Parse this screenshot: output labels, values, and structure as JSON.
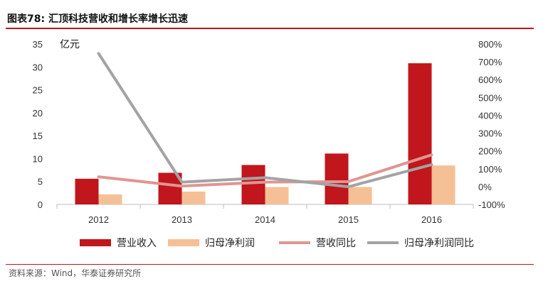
{
  "header": {
    "figure_no": "图表78:",
    "title": "汇顶科技营收和增长率增长迅速"
  },
  "unit_label": "亿元",
  "source_note": "资料来源：Wind，华泰证券研究所",
  "colors": {
    "revenue": "#c0161c",
    "net_profit": "#f5c096",
    "revenue_yoy": "#e09592",
    "net_profit_yoy": "#a3a3a3",
    "accent_rule": "#c0161c"
  },
  "chart_data": {
    "type": "bar",
    "categories": [
      "2012",
      "2013",
      "2014",
      "2015",
      "2016"
    ],
    "series": [
      {
        "name": "营业收入",
        "type": "bar",
        "axis": "left",
        "values": [
          5.6,
          6.9,
          8.6,
          11.1,
          30.8
        ]
      },
      {
        "name": "归母净利润",
        "type": "bar",
        "axis": "left",
        "values": [
          2.2,
          2.8,
          3.8,
          3.8,
          8.5
        ]
      },
      {
        "name": "营收同比",
        "type": "line",
        "axis": "right",
        "values": [
          0.55,
          0.03,
          0.25,
          0.28,
          1.78
        ]
      },
      {
        "name": "归母净利润同比",
        "type": "line",
        "axis": "right",
        "values": [
          7.47,
          0.25,
          0.5,
          -0.01,
          1.23
        ]
      }
    ],
    "y_left": {
      "min": 0,
      "max": 35,
      "ticks": [
        "0",
        "5",
        "10",
        "15",
        "20",
        "25",
        "30",
        "35"
      ]
    },
    "y_right": {
      "min": -1,
      "max": 8,
      "ticks": [
        "-100%",
        "0%",
        "100%",
        "200%",
        "300%",
        "400%",
        "500%",
        "600%",
        "700%",
        "800%"
      ]
    },
    "legend_position": "bottom",
    "grid": false
  }
}
